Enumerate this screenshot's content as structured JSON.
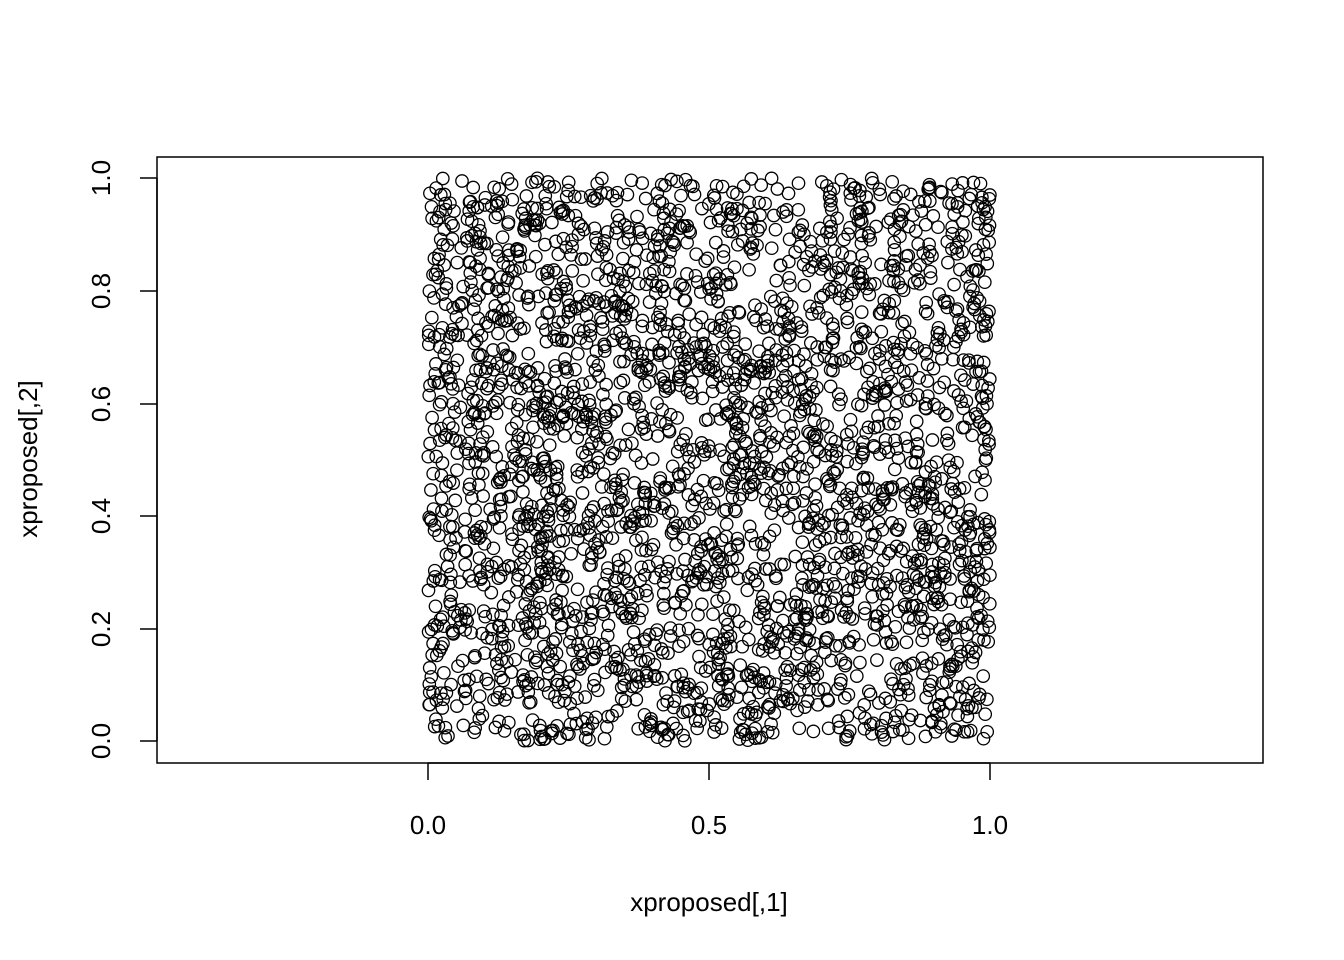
{
  "chart_data": {
    "type": "scatter",
    "title": "",
    "xlabel": "xproposed[,1]",
    "ylabel": "xproposed[,2]",
    "xlim": [
      -0.48,
      1.48
    ],
    "ylim": [
      -0.04,
      1.04
    ],
    "x_ticks": [
      "0.0",
      "0.5",
      "1.0"
    ],
    "y_ticks": [
      "0.0",
      "0.2",
      "0.4",
      "0.6",
      "0.8",
      "1.0"
    ],
    "grid": false,
    "legend": "none",
    "marker": "open-circle",
    "point_color": "#000000",
    "n_points": 3000,
    "distribution": {
      "x_range": [
        0,
        1
      ],
      "y_range": [
        0,
        1
      ],
      "kind": "uniform"
    }
  }
}
